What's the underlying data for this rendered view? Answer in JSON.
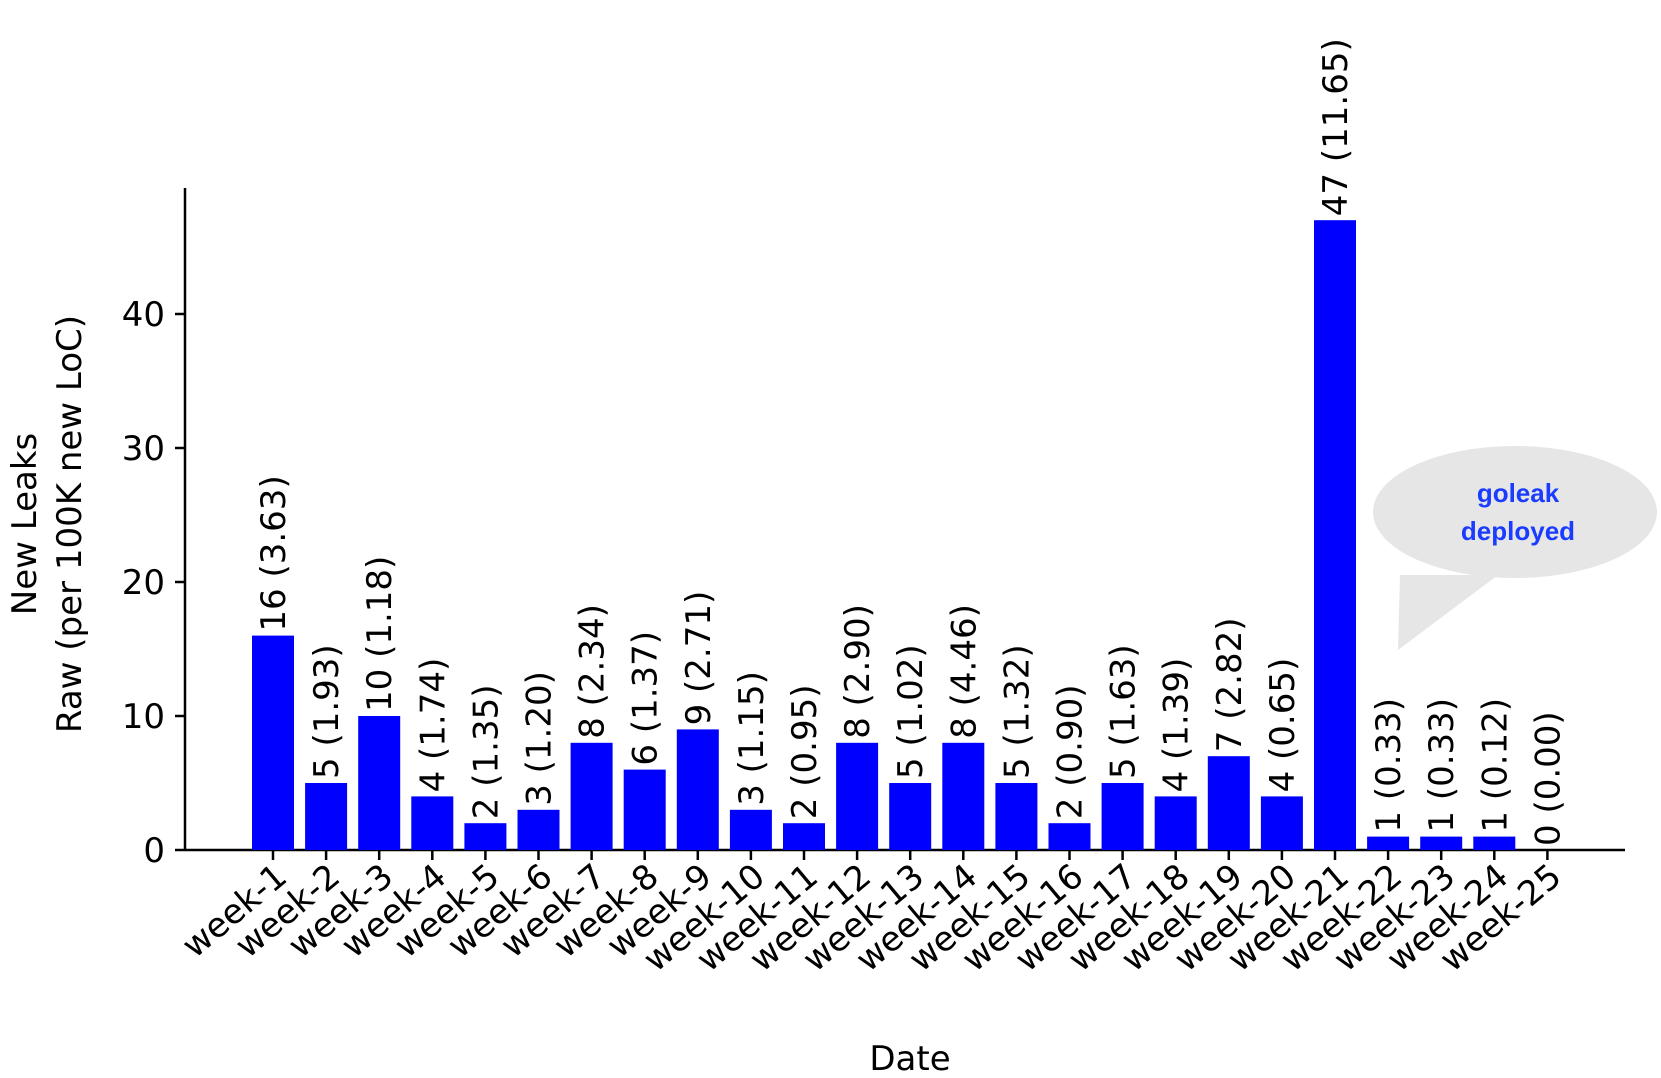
{
  "chart_data": {
    "type": "bar",
    "title": "",
    "xlabel": "Date",
    "ylabel_line1": "New Leaks",
    "ylabel_line2": "Raw (per 100K new LoC)",
    "ylim": [
      0,
      50
    ],
    "yticks": [
      0,
      10,
      20,
      30,
      40
    ],
    "bar_color": "#0000ff",
    "categories": [
      "week-1",
      "week-2",
      "week-3",
      "week-4",
      "week-5",
      "week-6",
      "week-7",
      "week-8",
      "week-9",
      "week-10",
      "week-11",
      "week-12",
      "week-13",
      "week-14",
      "week-15",
      "week-16",
      "week-17",
      "week-18",
      "week-19",
      "week-20",
      "week-21",
      "week-22",
      "week-23",
      "week-24",
      "week-25"
    ],
    "values": [
      16,
      5,
      10,
      4,
      2,
      3,
      8,
      6,
      9,
      3,
      2,
      8,
      5,
      8,
      5,
      2,
      5,
      4,
      7,
      4,
      47,
      1,
      1,
      1,
      0
    ],
    "labels": [
      "16 (3.63)",
      "5 (1.93)",
      "10 (1.18)",
      "4 (1.74)",
      "2 (1.35)",
      "3 (1.20)",
      "8 (2.34)",
      "6 (1.37)",
      "9 (2.71)",
      "3 (1.15)",
      "2 (0.95)",
      "8 (2.90)",
      "5 (1.02)",
      "8 (4.46)",
      "5 (1.32)",
      "2 (0.90)",
      "5 (1.63)",
      "4 (1.39)",
      "7 (2.82)",
      "4 (0.65)",
      "47 (11.65)",
      "1 (0.33)",
      "1 (0.33)",
      "1 (0.12)",
      "0 (0.00)"
    ],
    "annotation": {
      "line1": "goleak",
      "line2": "deployed",
      "text_color": "#1a3cff",
      "bubble_color": "#e6e6e6"
    }
  }
}
